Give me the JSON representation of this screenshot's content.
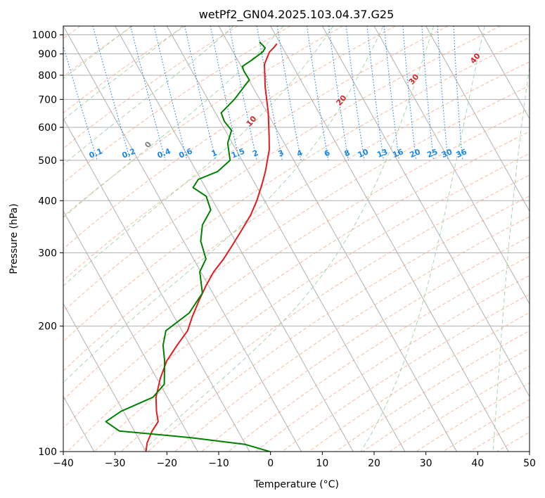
{
  "chart_data": {
    "type": "line",
    "title": "wetPf2_GN04.2025.103.04.37.G25",
    "xlabel": "Temperature (°C)",
    "ylabel": "Pressure (hPa)",
    "xlim": [
      -40,
      50
    ],
    "ylim": [
      1050,
      100
    ],
    "y_scale": "log",
    "grid": true,
    "x_ticks": [
      -40,
      -30,
      -20,
      -10,
      0,
      10,
      20,
      30,
      40,
      50
    ],
    "x_tick_labels": [
      "−40",
      "−30",
      "−20",
      "−10",
      "0",
      "10",
      "20",
      "30",
      "40",
      "50"
    ],
    "y_ticks": [
      100,
      200,
      300,
      400,
      500,
      600,
      700,
      800,
      900,
      1000
    ],
    "y_tick_labels": [
      "100",
      "200",
      "300",
      "400",
      "500",
      "600",
      "700",
      "800",
      "900",
      "1000"
    ],
    "temperature_color": "#e41a1c",
    "dewpoint_color": "#008000",
    "dry_adiabat_color": "#f4a582",
    "moist_adiabat_color": "#9fd29f",
    "mixing_ratio_color": "#1e88e5",
    "moist_label_color": "#d62728",
    "series": [
      {
        "variable": "temperature",
        "points": [
          {
            "p": 950,
            "t": -0.8
          },
          {
            "p": 930,
            "t": -1.8
          },
          {
            "p": 910,
            "t": -3.0
          },
          {
            "p": 850,
            "t": -5.3
          },
          {
            "p": 750,
            "t": -7.6
          },
          {
            "p": 650,
            "t": -9.8
          },
          {
            "p": 570,
            "t": -12.2
          },
          {
            "p": 530,
            "t": -13.6
          },
          {
            "p": 500,
            "t": -15.1
          },
          {
            "p": 470,
            "t": -16.7
          },
          {
            "p": 440,
            "t": -18.6
          },
          {
            "p": 400,
            "t": -21.5
          },
          {
            "p": 370,
            "t": -24.2
          },
          {
            "p": 340,
            "t": -27.6
          },
          {
            "p": 310,
            "t": -31.4
          },
          {
            "p": 290,
            "t": -34.2
          },
          {
            "p": 270,
            "t": -37.5
          },
          {
            "p": 250,
            "t": -40.5
          },
          {
            "p": 230,
            "t": -43.5
          },
          {
            "p": 210,
            "t": -46.6
          },
          {
            "p": 195,
            "t": -48.9
          },
          {
            "p": 180,
            "t": -52.5
          },
          {
            "p": 165,
            "t": -56.2
          },
          {
            "p": 150,
            "t": -59.3
          },
          {
            "p": 135,
            "t": -62.2
          },
          {
            "p": 125,
            "t": -63.6
          },
          {
            "p": 118,
            "t": -64.4
          },
          {
            "p": 112,
            "t": -66.6
          },
          {
            "p": 105,
            "t": -68.8
          },
          {
            "p": 100,
            "t": -70.0
          }
        ]
      },
      {
        "variable": "dewpoint",
        "points": [
          {
            "p": 960,
            "t": -3.8
          },
          {
            "p": 930,
            "t": -3.4
          },
          {
            "p": 910,
            "t": -4.3
          },
          {
            "p": 870,
            "t": -7.3
          },
          {
            "p": 840,
            "t": -9.8
          },
          {
            "p": 820,
            "t": -10.0
          },
          {
            "p": 780,
            "t": -9.9
          },
          {
            "p": 700,
            "t": -14.9
          },
          {
            "p": 650,
            "t": -18.9
          },
          {
            "p": 620,
            "t": -19.2
          },
          {
            "p": 590,
            "t": -18.8
          },
          {
            "p": 550,
            "t": -20.9
          },
          {
            "p": 500,
            "t": -22.3
          },
          {
            "p": 470,
            "t": -25.9
          },
          {
            "p": 450,
            "t": -30.5
          },
          {
            "p": 430,
            "t": -32.4
          },
          {
            "p": 410,
            "t": -30.8
          },
          {
            "p": 380,
            "t": -31.4
          },
          {
            "p": 350,
            "t": -34.6
          },
          {
            "p": 320,
            "t": -36.7
          },
          {
            "p": 290,
            "t": -37.6
          },
          {
            "p": 270,
            "t": -40.2
          },
          {
            "p": 240,
            "t": -42.0
          },
          {
            "p": 215,
            "t": -46.7
          },
          {
            "p": 195,
            "t": -53.1
          },
          {
            "p": 180,
            "t": -55.2
          },
          {
            "p": 165,
            "t": -56.6
          },
          {
            "p": 145,
            "t": -59.2
          },
          {
            "p": 135,
            "t": -62.8
          },
          {
            "p": 125,
            "t": -70.4
          },
          {
            "p": 118,
            "t": -74.5
          },
          {
            "p": 112,
            "t": -72.9
          },
          {
            "p": 108,
            "t": -59.8
          },
          {
            "p": 104,
            "t": -50.0
          },
          {
            "p": 100,
            "t": -46.1
          }
        ]
      }
    ],
    "dry_adiabats": [
      -100,
      -90,
      -80,
      -70,
      -60,
      -50,
      -40,
      -30,
      -20,
      -10
    ],
    "moist_adiabats": [
      0,
      10,
      20,
      30,
      40
    ],
    "mixing_ratios": [
      "0.1",
      "0.2",
      "0.4",
      "0.6",
      "1",
      "1.5",
      "2",
      "3",
      "4",
      "6",
      "8",
      "10",
      "13",
      "16",
      "20",
      "25",
      "30",
      "36"
    ]
  }
}
